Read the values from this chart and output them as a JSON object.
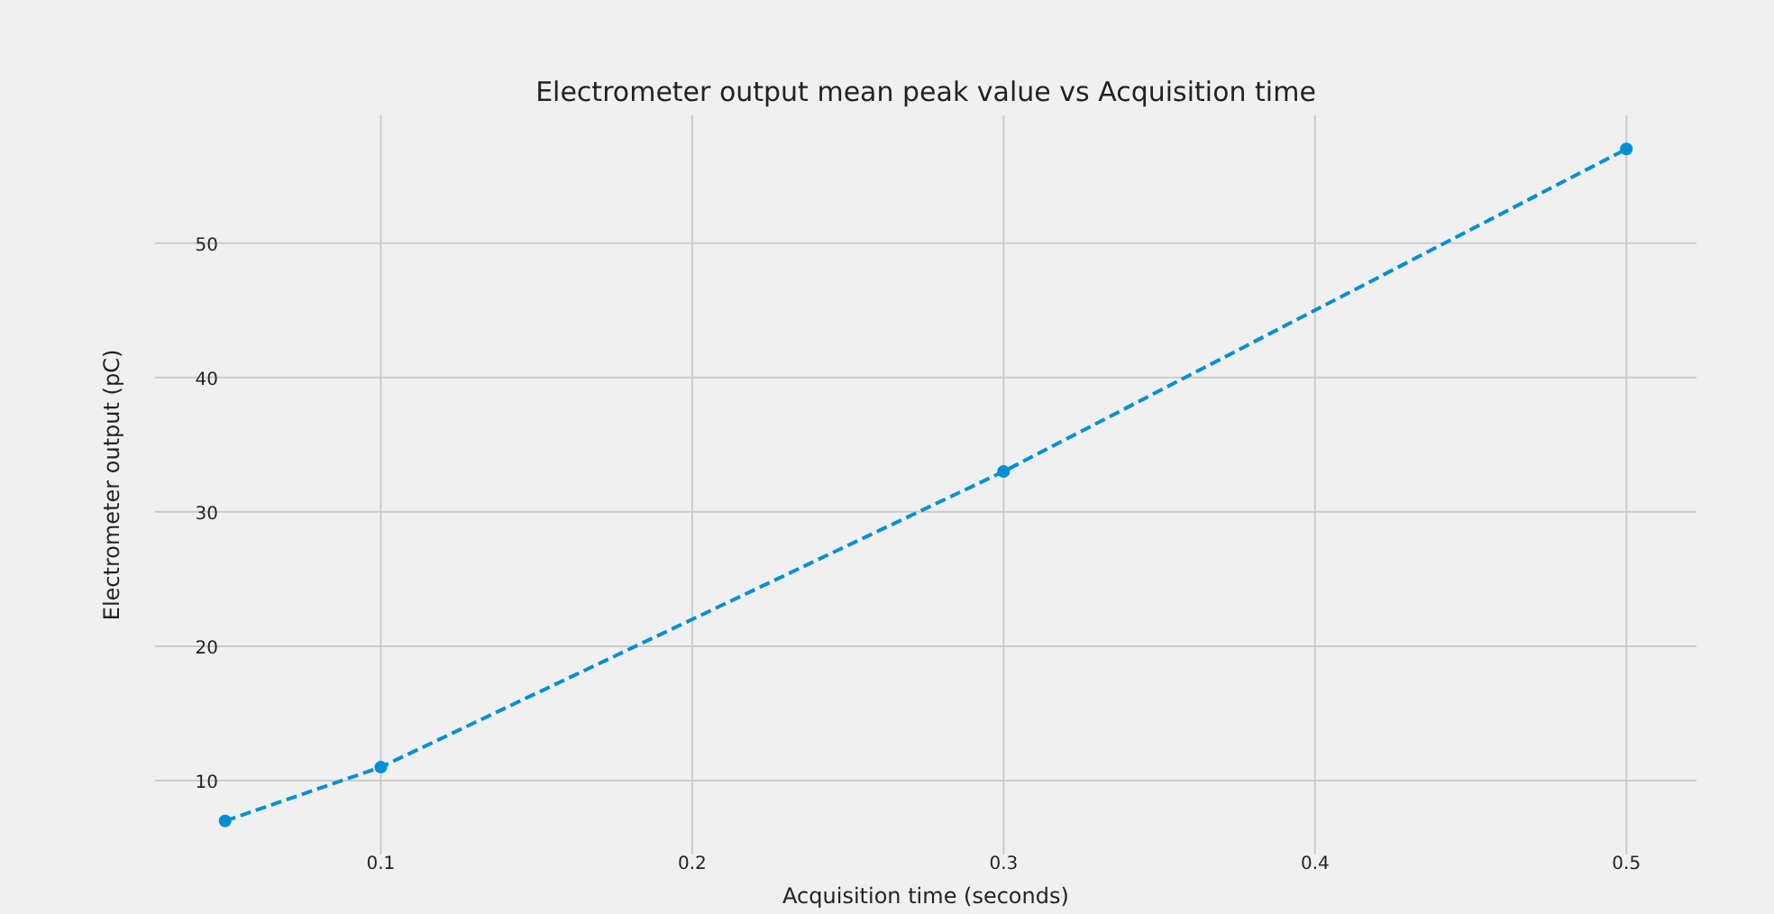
{
  "chart_data": {
    "type": "line",
    "title": "Electrometer output mean peak value vs Acquisition time",
    "xlabel": "Acquisition time (seconds)",
    "ylabel": "Electrometer output (pC)",
    "x": [
      0.05,
      0.1,
      0.3,
      0.5
    ],
    "series": [
      {
        "color": "#008fd5",
        "values": [
          7,
          11,
          33,
          57
        ]
      }
    ],
    "xlim": [
      0.0275,
      0.5225
    ],
    "xticks": [
      0.1,
      0.2,
      0.3,
      0.4,
      0.5
    ],
    "ylim": [
      4.5,
      59.5
    ],
    "yticks": [
      10,
      20,
      30,
      40,
      50
    ],
    "grid": true,
    "marker": "circle",
    "line_style": "dashed"
  }
}
